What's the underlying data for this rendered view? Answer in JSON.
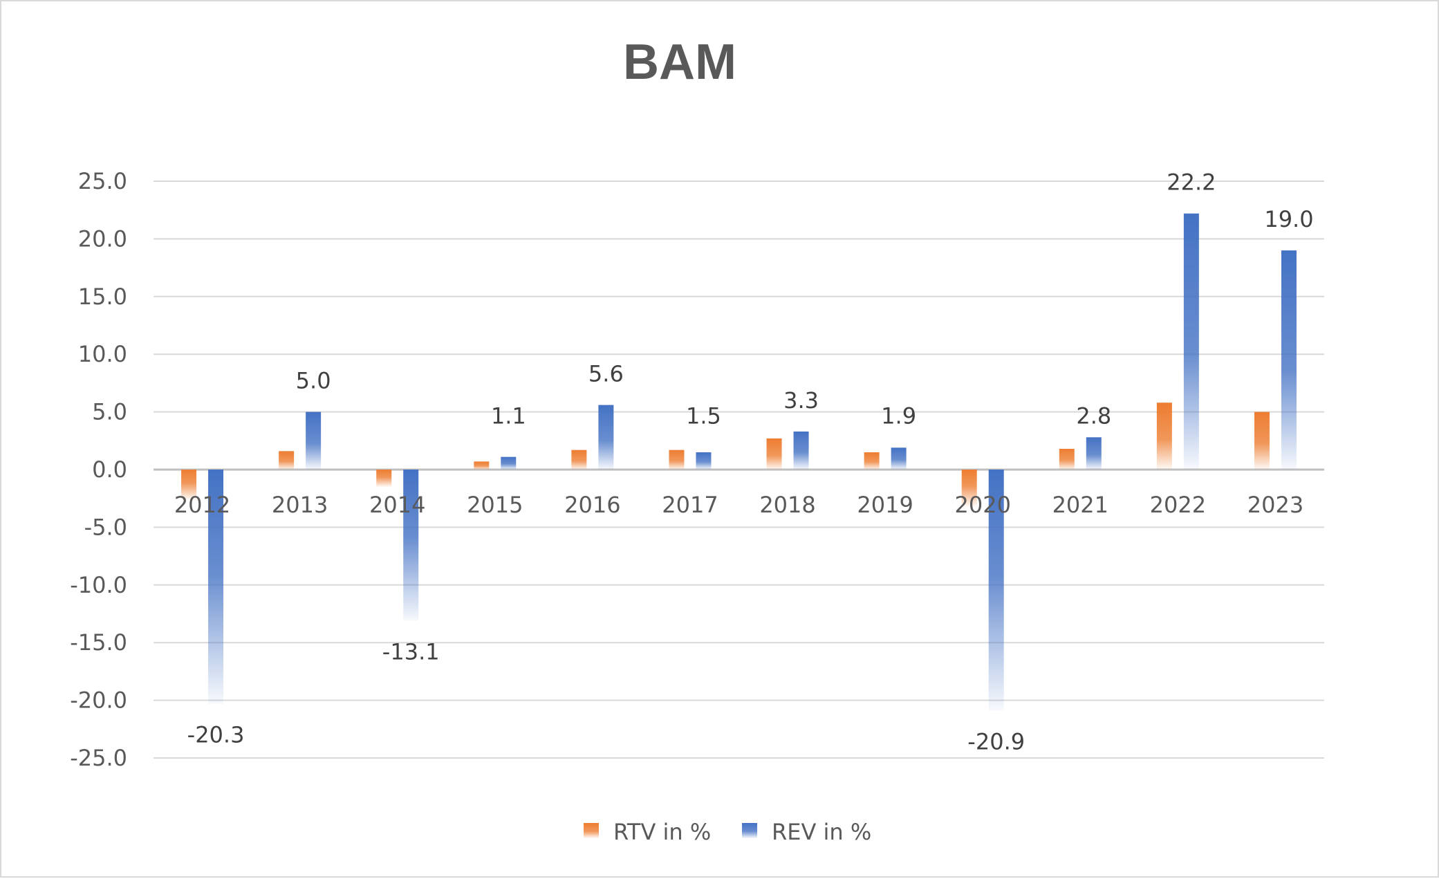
{
  "chart_data": {
    "type": "bar",
    "title": "BAM",
    "xlabel": "",
    "ylabel": "",
    "ylim": [
      -25,
      25
    ],
    "yticks": [
      25,
      20,
      15,
      10,
      5,
      0,
      -5,
      -10,
      -15,
      -20,
      -25
    ],
    "ytick_labels": [
      "25.0",
      "20.0",
      "15.0",
      "10.0",
      "5.0",
      "0.0",
      "-5.0",
      "-10.0",
      "-15.0",
      "-20.0",
      "-25.0"
    ],
    "grid": true,
    "legend_position": "bottom",
    "categories": [
      "2012",
      "2013",
      "2014",
      "2015",
      "2016",
      "2017",
      "2018",
      "2019",
      "2020",
      "2021",
      "2022",
      "2023"
    ],
    "series": [
      {
        "name": "RTV in %",
        "color": "#ED7D31",
        "values": [
          -2.6,
          1.6,
          -1.5,
          0.7,
          1.7,
          1.7,
          2.7,
          1.5,
          -3.2,
          1.8,
          5.8,
          5.0
        ],
        "data_labels": [
          "",
          "",
          "",
          "",
          "",
          "",
          "",
          "",
          "",
          "",
          "",
          ""
        ]
      },
      {
        "name": "REV in %",
        "color": "#4472C4",
        "values": [
          -20.3,
          5.0,
          -13.1,
          1.1,
          5.6,
          1.5,
          3.3,
          1.9,
          -20.9,
          2.8,
          22.2,
          19.0
        ],
        "data_labels": [
          "-20.3",
          "5.0",
          "-13.1",
          "1.1",
          "5.6",
          "1.5",
          "3.3",
          "1.9",
          "-20.9",
          "2.8",
          "22.2",
          "19.0"
        ]
      }
    ]
  }
}
